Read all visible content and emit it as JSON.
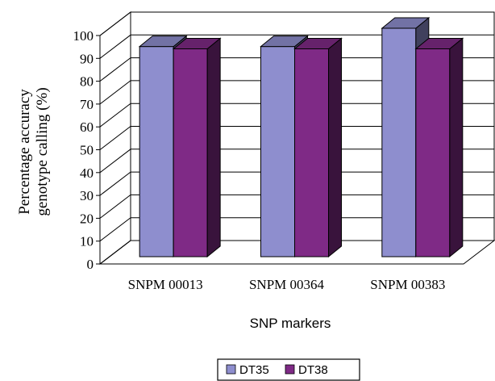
{
  "chart_data": {
    "type": "bar",
    "style": "3d-clustered-column",
    "categories": [
      "SNPM 00013",
      "SNPM 00364",
      "SNPM 00383"
    ],
    "series": [
      {
        "name": "DT35",
        "values": [
          92,
          92,
          100
        ],
        "color": "#8e8ece"
      },
      {
        "name": "DT38",
        "values": [
          91,
          91,
          91
        ],
        "color": "#7f2a86"
      }
    ],
    "ylim": [
      0,
      100
    ],
    "yticks": [
      0,
      10,
      20,
      30,
      40,
      50,
      60,
      70,
      80,
      90,
      100
    ],
    "ylabel_line1": "Percentage accuracy",
    "ylabel_line2": "genotype calling (%)",
    "xlabel": "SNP markers",
    "grid": true,
    "legend_position": "bottom"
  }
}
